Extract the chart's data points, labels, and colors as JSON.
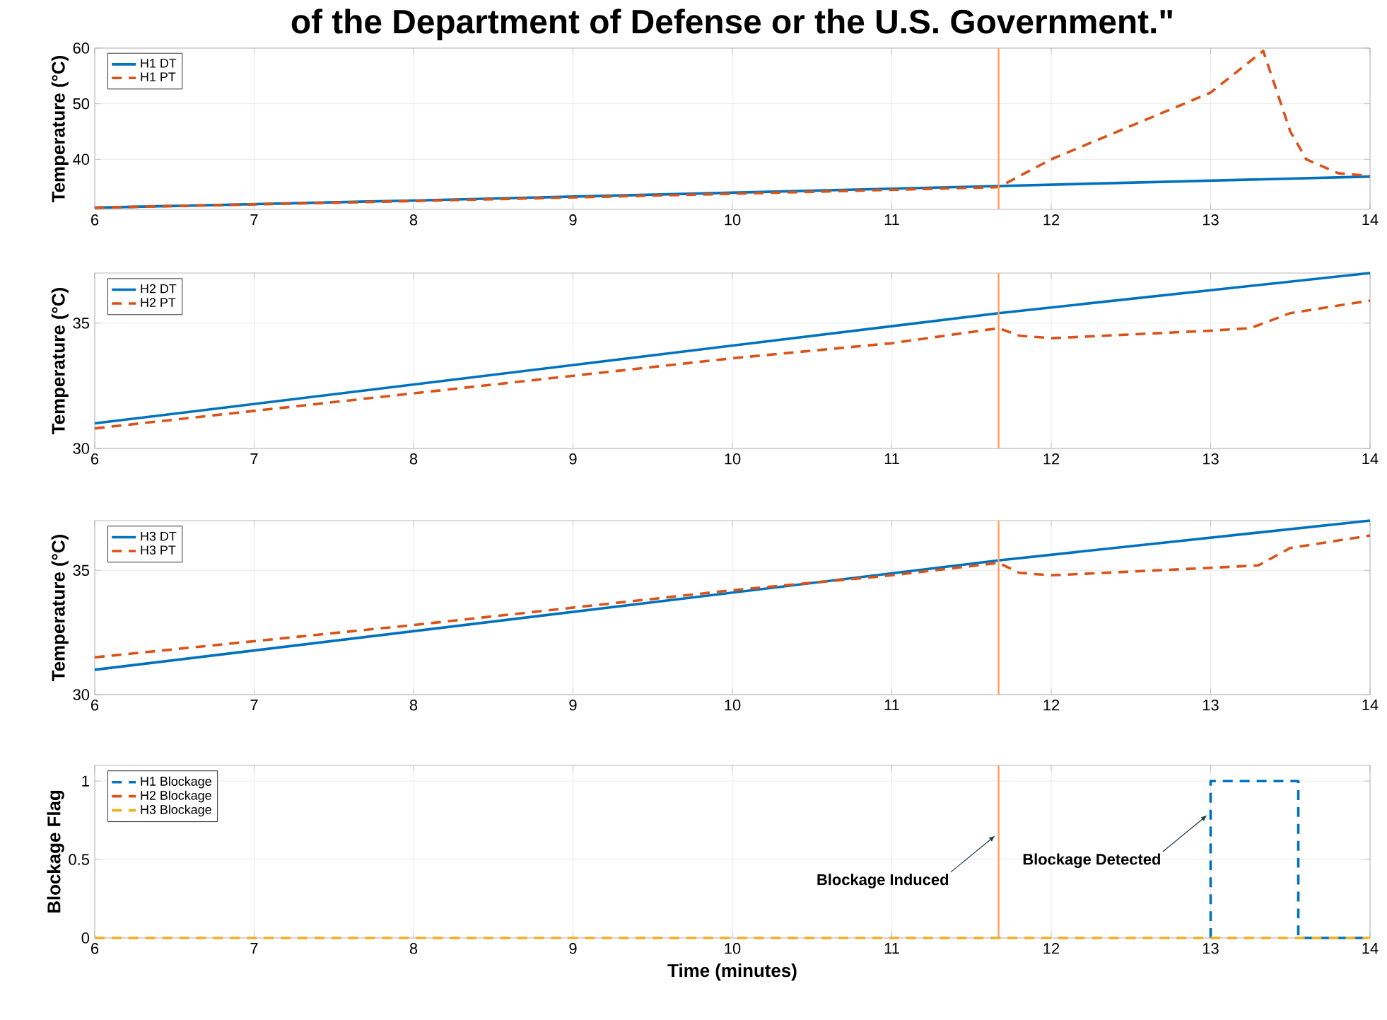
{
  "chart_data": [
    {
      "type": "line",
      "title": "of the Department of Defense or the U.S. Government.\"",
      "ylabel": "Temperature (°C)",
      "xlim": [
        6,
        14
      ],
      "ylim": [
        31,
        60
      ],
      "xticks": [
        6,
        7,
        8,
        9,
        10,
        11,
        12,
        13,
        14
      ],
      "yticks": [
        40,
        50,
        60
      ],
      "grid": true,
      "legend": "top left",
      "series": [
        {
          "name": "H1 DT",
          "color": "#0072bd",
          "line_style": "solid",
          "x": [
            6,
            8,
            10,
            11.67,
            14
          ],
          "values": [
            31.3,
            32.6,
            34.0,
            35.2,
            36.9
          ]
        },
        {
          "name": "H1 PT",
          "color": "#d95319",
          "line_style": "dashed",
          "x": [
            6,
            8,
            10,
            11.67,
            12,
            13,
            13.33,
            13.5,
            13.6,
            13.8,
            14
          ],
          "values": [
            31.3,
            32.5,
            33.8,
            35.0,
            40.0,
            52.0,
            59.5,
            45.0,
            40.0,
            37.5,
            37.0
          ]
        }
      ],
      "ref_lines": [
        {
          "axis": "x",
          "value": 11.67,
          "color": "#ff9e5e"
        }
      ]
    },
    {
      "type": "line",
      "ylabel": "Temperature (°C)",
      "xlim": [
        6,
        14
      ],
      "ylim": [
        30,
        37
      ],
      "xticks": [
        6,
        7,
        8,
        9,
        10,
        11,
        12,
        13,
        14
      ],
      "yticks": [
        30,
        35
      ],
      "grid": true,
      "legend": "top left",
      "series": [
        {
          "name": "H2 DT",
          "color": "#0072bd",
          "line_style": "solid",
          "x": [
            6,
            11.67,
            14
          ],
          "values": [
            31.0,
            35.4,
            37.0
          ]
        },
        {
          "name": "H2 PT",
          "color": "#d95319",
          "line_style": "dashed",
          "x": [
            6,
            8,
            10,
            11,
            11.67,
            11.8,
            12,
            13,
            13.25,
            13.5,
            14
          ],
          "values": [
            30.8,
            32.2,
            33.6,
            34.2,
            34.8,
            34.5,
            34.4,
            34.7,
            34.8,
            35.4,
            35.9
          ]
        }
      ],
      "ref_lines": [
        {
          "axis": "x",
          "value": 11.67,
          "color": "#ff9e5e"
        }
      ]
    },
    {
      "type": "line",
      "ylabel": "Temperature (°C)",
      "xlim": [
        6,
        14
      ],
      "ylim": [
        30,
        37
      ],
      "xticks": [
        6,
        7,
        8,
        9,
        10,
        11,
        12,
        13,
        14
      ],
      "yticks": [
        30,
        35
      ],
      "grid": true,
      "legend": "top left",
      "series": [
        {
          "name": "H3 DT",
          "color": "#0072bd",
          "line_style": "solid",
          "x": [
            6,
            11.67,
            14
          ],
          "values": [
            31.0,
            35.4,
            37.0
          ]
        },
        {
          "name": "H3 PT",
          "color": "#d95319",
          "line_style": "dashed",
          "x": [
            6,
            8,
            10,
            11,
            11.67,
            11.8,
            12,
            13,
            13.3,
            13.5,
            14
          ],
          "values": [
            31.5,
            32.8,
            34.2,
            34.8,
            35.3,
            34.9,
            34.8,
            35.1,
            35.2,
            35.9,
            36.4
          ]
        }
      ],
      "ref_lines": [
        {
          "axis": "x",
          "value": 11.67,
          "color": "#ff9e5e"
        }
      ]
    },
    {
      "type": "step",
      "ylabel": "Blockage Flag",
      "xlabel": "Time (minutes)",
      "xlim": [
        6,
        14
      ],
      "ylim": [
        0,
        1.1
      ],
      "xticks": [
        6,
        7,
        8,
        9,
        10,
        11,
        12,
        13,
        14
      ],
      "yticks": [
        0,
        0.5,
        1
      ],
      "grid": true,
      "legend": "top left",
      "series": [
        {
          "name": "H1 Blockage",
          "color": "#0072bd",
          "line_style": "dashed",
          "x": [
            13,
            13,
            13.55,
            14
          ],
          "values": [
            0,
            1,
            0,
            0
          ]
        },
        {
          "name": "H2 Blockage",
          "color": "#d95319",
          "line_style": "dashed",
          "values": [
            null,
            null
          ]
        },
        {
          "name": "H3 Blockage",
          "color": "#edb120",
          "line_style": "dashed",
          "x": [
            6,
            14
          ],
          "values": [
            0,
            0
          ]
        }
      ],
      "ref_lines": [
        {
          "axis": "x",
          "value": 11.67,
          "color": "#ff9e5e"
        }
      ],
      "annotations": [
        {
          "text": "Blockage Induced",
          "x": 11.67,
          "y": 0.67
        },
        {
          "text": "Blockage Detected",
          "x": 13,
          "y": 0.8
        }
      ]
    }
  ]
}
